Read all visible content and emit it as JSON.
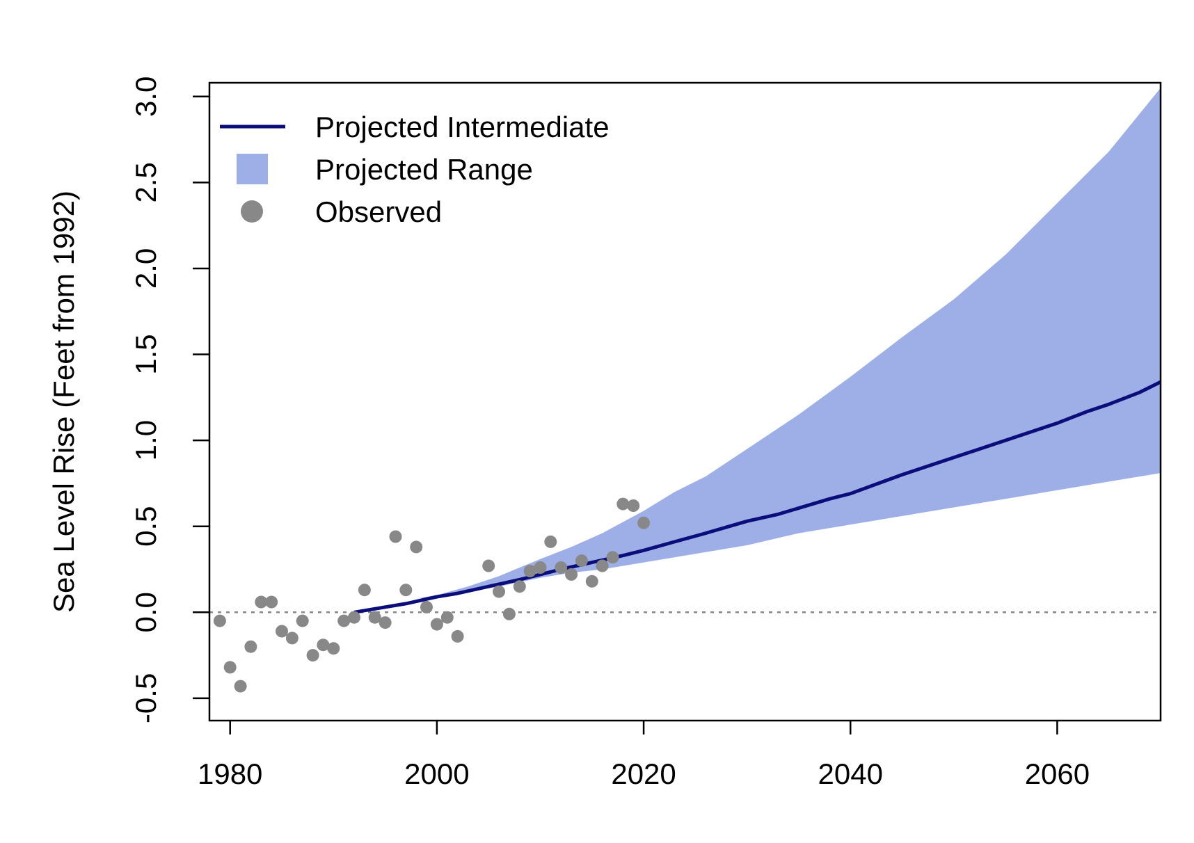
{
  "chart_data": {
    "type": "line",
    "title": "",
    "xlabel": "",
    "ylabel": "Sea Level Rise (Feet from 1992)",
    "xlim": [
      1978,
      2070
    ],
    "ylim": [
      -0.63,
      3.08
    ],
    "x_ticks": [
      1980,
      2000,
      2020,
      2040,
      2060
    ],
    "x_tick_labels": [
      "1980",
      "2000",
      "2020",
      "2040",
      "2060"
    ],
    "y_ticks": [
      -0.5,
      0,
      0.5,
      1,
      1.5,
      2,
      2.5,
      3
    ],
    "y_tick_labels": [
      "-0.5",
      "0.0",
      "0.5",
      "1.0",
      "1.5",
      "2.0",
      "2.5",
      "3.0"
    ],
    "baseline": 0,
    "grid": false,
    "legend_position": "top-left",
    "colors": {
      "intermediate": "#0b0e7a",
      "range": "#9dafe6",
      "observed": "#888888",
      "baseline": "#888888"
    },
    "legend": [
      {
        "label": "Projected Intermediate",
        "symbol": "line"
      },
      {
        "label": "Projected Range",
        "symbol": "square"
      },
      {
        "label": "Observed",
        "symbol": "circle"
      }
    ],
    "series": [
      {
        "name": "Projected Intermediate",
        "type": "line",
        "x": [
          1992,
          1997,
          2000,
          2002,
          2005,
          2008,
          2010,
          2012,
          2015,
          2018,
          2020,
          2023,
          2026,
          2030,
          2033,
          2038,
          2040,
          2045,
          2050,
          2053,
          2055,
          2058,
          2060,
          2063,
          2065,
          2068,
          2070
        ],
        "y": [
          0,
          0.05,
          0.09,
          0.11,
          0.15,
          0.19,
          0.22,
          0.25,
          0.29,
          0.33,
          0.36,
          0.41,
          0.46,
          0.53,
          0.57,
          0.66,
          0.69,
          0.8,
          0.9,
          0.96,
          1.0,
          1.06,
          1.1,
          1.17,
          1.21,
          1.28,
          1.34
        ]
      },
      {
        "name": "Projected Range",
        "type": "area",
        "x": [
          1998,
          2000,
          2003,
          2006,
          2010,
          2013,
          2016,
          2020,
          2023,
          2026,
          2030,
          2035,
          2040,
          2045,
          2050,
          2055,
          2060,
          2065,
          2070
        ],
        "lower": [
          0.08,
          0.09,
          0.12,
          0.15,
          0.2,
          0.23,
          0.25,
          0.29,
          0.32,
          0.35,
          0.39,
          0.46,
          0.51,
          0.56,
          0.61,
          0.66,
          0.71,
          0.76,
          0.81
        ],
        "upper": [
          0.08,
          0.1,
          0.15,
          0.21,
          0.31,
          0.38,
          0.46,
          0.59,
          0.7,
          0.79,
          0.95,
          1.15,
          1.37,
          1.6,
          1.82,
          2.08,
          2.38,
          2.68,
          3.05
        ]
      },
      {
        "name": "Observed",
        "type": "scatter",
        "x": [
          1979,
          1980,
          1981,
          1982,
          1983,
          1984,
          1985,
          1986,
          1987,
          1988,
          1989,
          1990,
          1991,
          1992,
          1993,
          1994,
          1995,
          1996,
          1997,
          1998,
          1999,
          2000,
          2001,
          2002,
          2005,
          2006,
          2007,
          2008,
          2009,
          2010,
          2011,
          2012,
          2013,
          2014,
          2015,
          2016,
          2017,
          2018,
          2019,
          2020
        ],
        "y": [
          -0.05,
          -0.32,
          -0.43,
          -0.2,
          0.06,
          0.06,
          -0.11,
          -0.15,
          -0.05,
          -0.25,
          -0.19,
          -0.21,
          -0.05,
          -0.03,
          0.13,
          -0.03,
          -0.06,
          0.44,
          0.13,
          0.38,
          0.03,
          -0.07,
          -0.03,
          -0.14,
          0.27,
          0.12,
          -0.01,
          0.15,
          0.24,
          0.26,
          0.41,
          0.26,
          0.22,
          0.3,
          0.18,
          0.27,
          0.32,
          0.63,
          0.62,
          0.52
        ]
      }
    ]
  }
}
